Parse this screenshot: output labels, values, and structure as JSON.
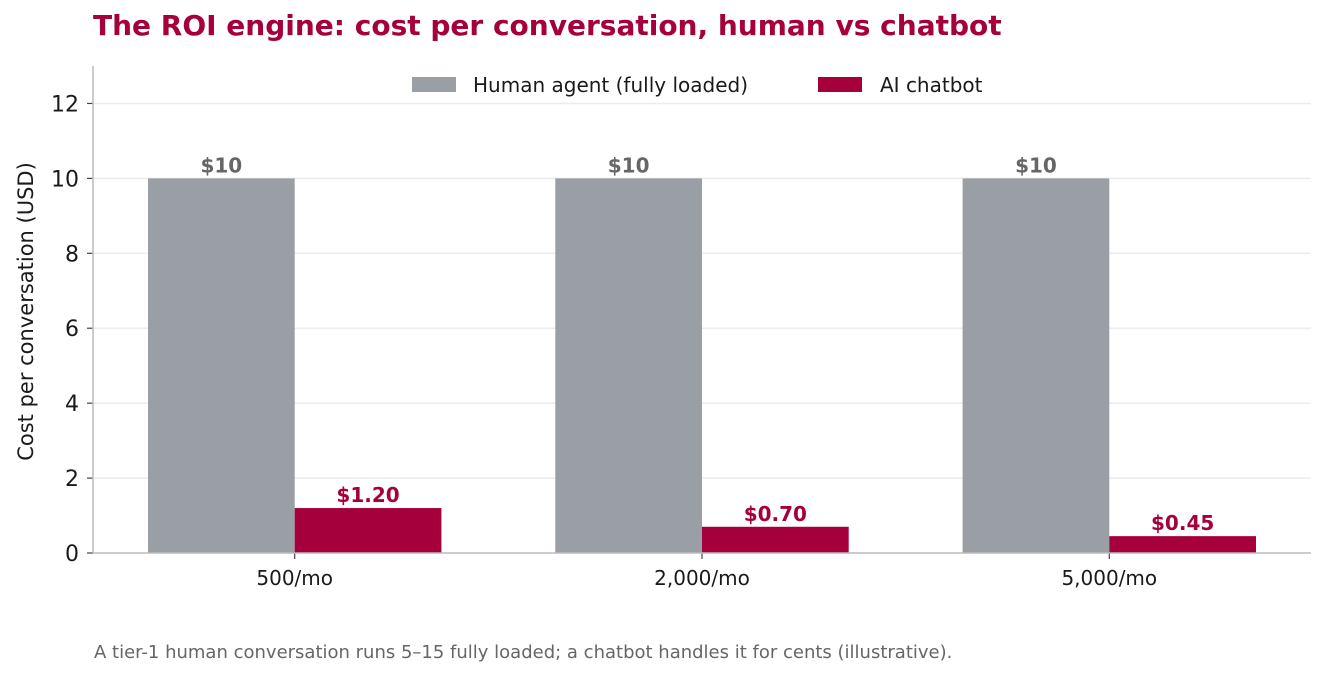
{
  "chart_data": {
    "type": "bar",
    "title": "The ROI engine: cost per conversation, human vs chatbot",
    "ylabel": "Cost per conversation (USD)",
    "xlabel": "",
    "categories": [
      "500/mo",
      "2,000/mo",
      "5,000/mo"
    ],
    "ylim": [
      0,
      13
    ],
    "yticks": [
      0,
      2,
      4,
      6,
      8,
      10,
      12
    ],
    "grid": true,
    "legend_position": "top-center",
    "series": [
      {
        "name": "Human agent (fully loaded)",
        "values": [
          10,
          10,
          10
        ],
        "labels": [
          "$10",
          "$10",
          "$10"
        ],
        "color": "#9a9fa6",
        "label_color": "#666666"
      },
      {
        "name": "AI chatbot",
        "values": [
          1.2,
          0.7,
          0.45
        ],
        "labels": [
          "$1.20",
          "$0.70",
          "$0.45"
        ],
        "color": "#a5003c",
        "label_color": "#a5003c"
      }
    ],
    "note": "A tier-1 human conversation runs 5–15 fully loaded; a chatbot handles it for cents (illustrative)."
  }
}
